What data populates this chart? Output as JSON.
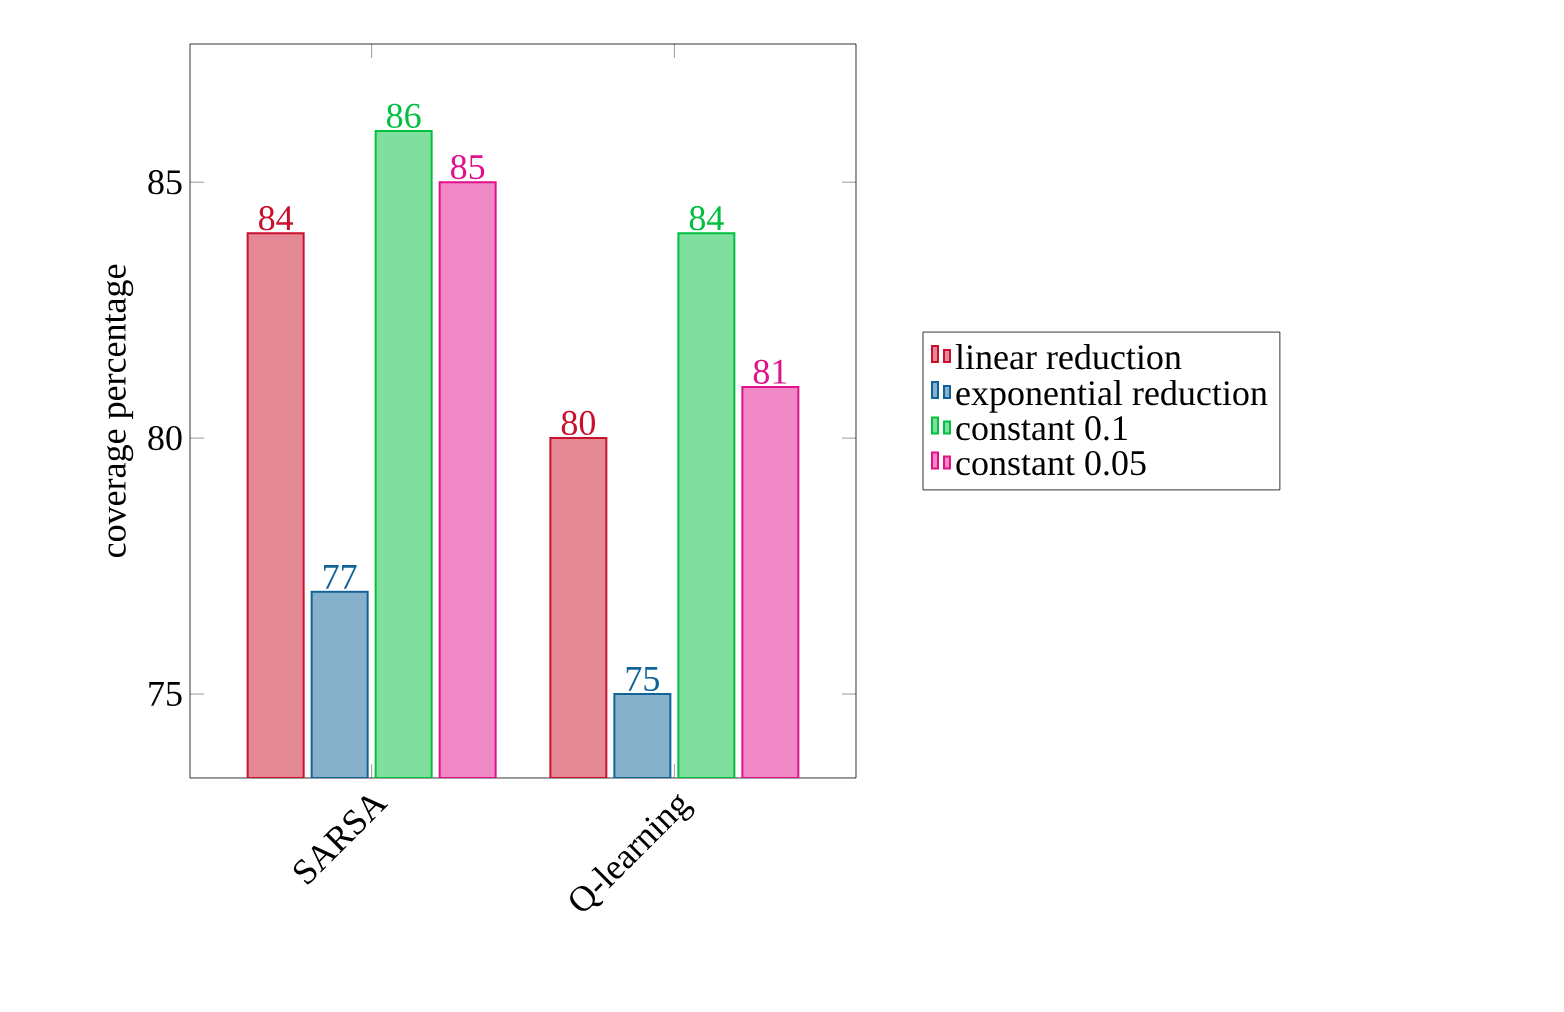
{
  "chart_data": {
    "type": "bar",
    "ylabel": "coverage percentage",
    "categories": [
      "SARSA",
      "Q-learning"
    ],
    "series": [
      {
        "name": "linear reduction",
        "color": "#e48896",
        "values": [
          84,
          80
        ]
      },
      {
        "name": "exponential reduction",
        "color": "#87b1cb",
        "values": [
          77,
          75
        ]
      },
      {
        "name": "constant 0.1",
        "color": "#80df9f",
        "values": [
          86,
          84
        ]
      },
      {
        "name": "constant 0.05",
        "color": "#ef88c5",
        "values": [
          85,
          81
        ]
      }
    ],
    "ylim": [
      73.36,
      87.7
    ],
    "yticks": [
      75,
      80,
      85
    ],
    "data_labels": true,
    "legend": "right",
    "grid": false
  }
}
